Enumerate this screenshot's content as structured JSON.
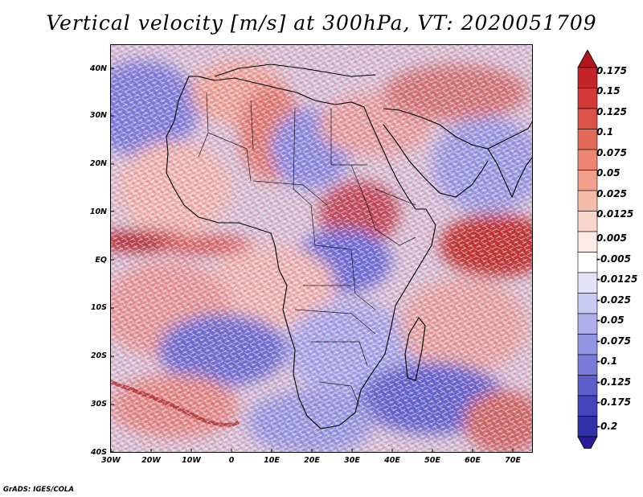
{
  "title": "Vertical velocity [m/s] at 300hPa, VT: 2020051709",
  "credit": "GrADS: IGES/COLA",
  "lat_ticks": [
    "40N",
    "30N",
    "20N",
    "10N",
    "EQ",
    "10S",
    "20S",
    "30S",
    "40S"
  ],
  "lon_ticks": [
    "30W",
    "20W",
    "10W",
    "0",
    "10E",
    "20E",
    "30E",
    "40E",
    "50E",
    "60E",
    "70E"
  ],
  "colorbar": {
    "top_color": "#b3151c",
    "bottom_color": "#2a1a9a",
    "levels": [
      {
        "label": "0.175",
        "color": "#c4242a"
      },
      {
        "label": "0.15",
        "color": "#d23a38"
      },
      {
        "label": "0.125",
        "color": "#dc5248"
      },
      {
        "label": "0.1",
        "color": "#e46a5c"
      },
      {
        "label": "0.075",
        "color": "#ec8672"
      },
      {
        "label": "0.05",
        "color": "#f2a08c"
      },
      {
        "label": "0.025",
        "color": "#f6bcaa"
      },
      {
        "label": "0.0125",
        "color": "#fad6ca"
      },
      {
        "label": "0.005",
        "color": "#fdeae4"
      },
      {
        "label": "-0.005",
        "color": "#ffffff"
      },
      {
        "label": "-0.0125",
        "color": "#e3e3f8"
      },
      {
        "label": "-0.025",
        "color": "#cacaf2"
      },
      {
        "label": "-0.05",
        "color": "#afafec"
      },
      {
        "label": "-0.075",
        "color": "#9494e4"
      },
      {
        "label": "-0.1",
        "color": "#7a7ad8"
      },
      {
        "label": "-0.125",
        "color": "#5e5ecb"
      },
      {
        "label": "-0.175",
        "color": "#4444bc"
      },
      {
        "label": "-0.2",
        "color": "#3030a8"
      }
    ]
  }
}
